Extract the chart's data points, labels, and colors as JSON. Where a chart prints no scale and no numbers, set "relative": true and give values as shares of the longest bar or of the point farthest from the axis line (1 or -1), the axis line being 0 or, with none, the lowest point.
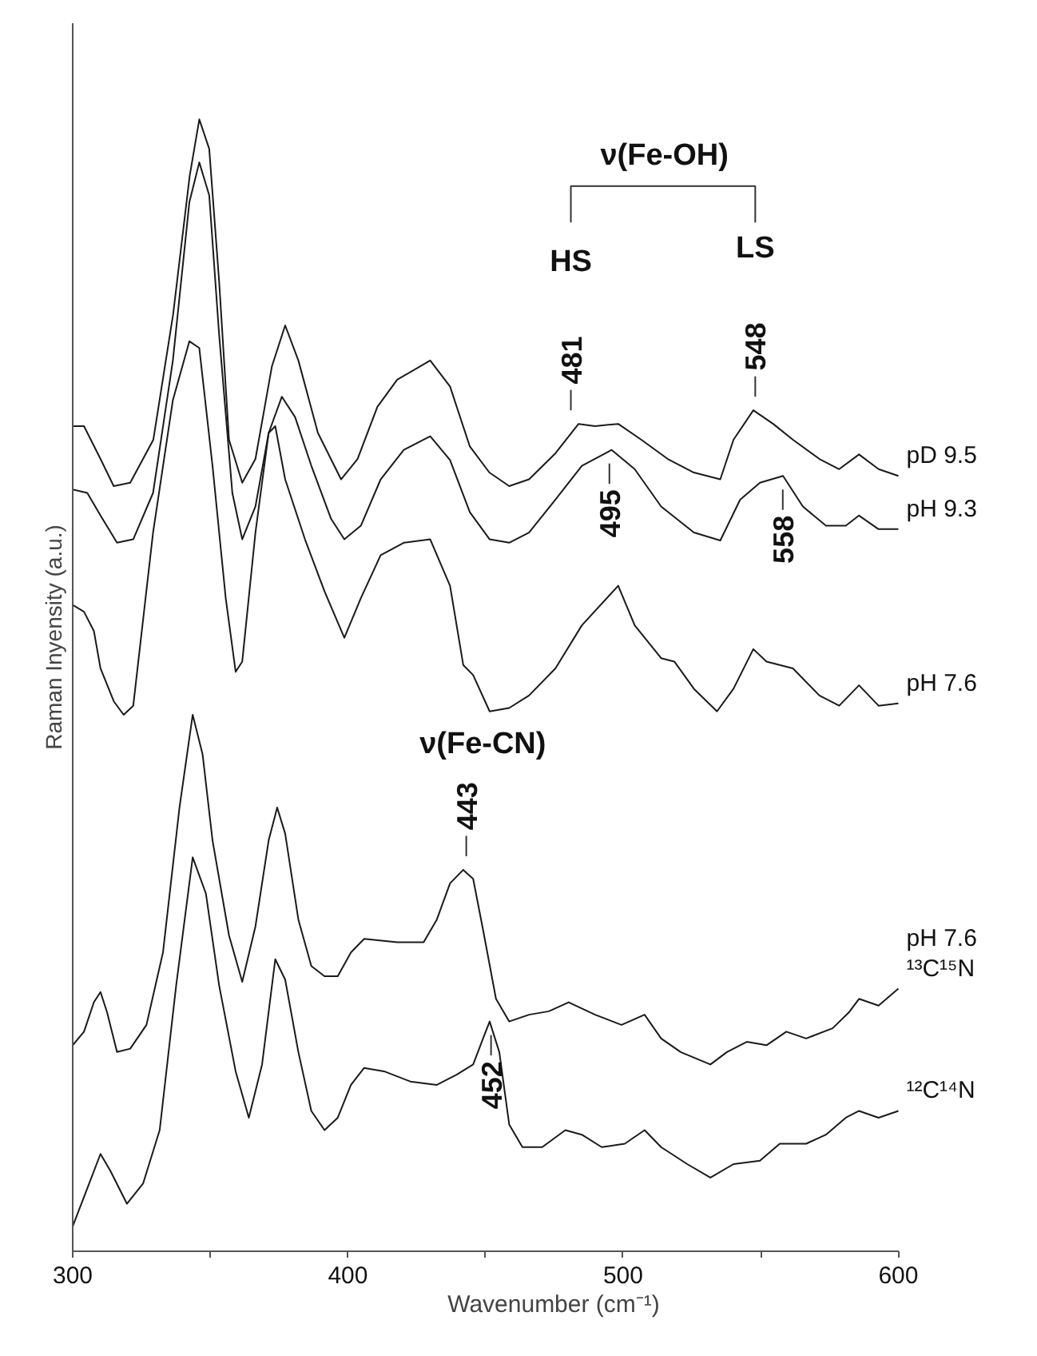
{
  "chart_data": {
    "type": "line",
    "relative": true,
    "xlabel": "Wavenumber (cm⁻¹)",
    "ylabel": "Raman Inyensity (a.u.)",
    "xlim": [
      300,
      600
    ],
    "xticks": [
      300,
      {
        "value": 350,
        "label": null
      },
      400,
      {
        "value": 450,
        "label": null
      },
      500,
      {
        "value": 550,
        "label": null
      },
      600
    ],
    "tick_labels": "x",
    "grid": false,
    "marker": "none",
    "line_style": "solid",
    "series": [
      {
        "name": "pD 9.5",
        "color": "#1a1a1a",
        "x": [
          300,
          304.1,
          310.1,
          314.9,
          320.9,
          329.3,
          336.5,
          342.5,
          346.0,
          349.6,
          353.2,
          356.8,
          361.6,
          366.4,
          372.4,
          377.2,
          382.0,
          389.1,
          397.5,
          403.5,
          410.7,
          417.9,
          429.9,
          437.1,
          444.3,
          451.4,
          458.6,
          465.8,
          475.4,
          483.8,
          489.8,
          498.2,
          506.6,
          516.2,
          525.7,
          535.3,
          540.1,
          547.3,
          554.5,
          561.7,
          571.3,
          578.5,
          585.7,
          592.8,
          600
        ],
        "values": [
          0.729,
          0.729,
          0.7,
          0.676,
          0.679,
          0.717,
          0.828,
          0.95,
          1.0,
          0.974,
          0.857,
          0.717,
          0.679,
          0.7,
          0.782,
          0.818,
          0.787,
          0.723,
          0.682,
          0.7,
          0.746,
          0.77,
          0.787,
          0.764,
          0.711,
          0.688,
          0.676,
          0.682,
          0.705,
          0.731,
          0.729,
          0.731,
          0.717,
          0.7,
          0.688,
          0.682,
          0.717,
          0.743,
          0.731,
          0.717,
          0.7,
          0.691,
          0.704,
          0.691,
          0.685
        ]
      },
      {
        "name": "pH 9.3",
        "color": "#1a1a1a",
        "x": [
          300,
          305.3,
          310.1,
          316.1,
          322.0,
          329.2,
          336.4,
          342.4,
          346.0,
          349.6,
          353.2,
          358.0,
          361.6,
          366.4,
          371.2,
          376.0,
          380.8,
          386.7,
          393.9,
          398.7,
          404.7,
          411.9,
          420.3,
          429.9,
          437.1,
          444.3,
          451.5,
          458.6,
          465.8,
          475.4,
          485.0,
          495.8,
          504.2,
          513.8,
          525.7,
          535.3,
          542.5,
          549.7,
          558.1,
          565.3,
          573.7,
          580.9,
          585.7,
          592.8,
          600
        ],
        "values": [
          0.673,
          0.67,
          0.65,
          0.626,
          0.629,
          0.67,
          0.787,
          0.927,
          0.962,
          0.933,
          0.81,
          0.67,
          0.629,
          0.658,
          0.723,
          0.755,
          0.737,
          0.694,
          0.647,
          0.629,
          0.641,
          0.682,
          0.708,
          0.72,
          0.699,
          0.653,
          0.629,
          0.626,
          0.635,
          0.664,
          0.694,
          0.708,
          0.691,
          0.658,
          0.635,
          0.628,
          0.664,
          0.679,
          0.685,
          0.658,
          0.641,
          0.641,
          0.65,
          0.638,
          0.638
        ]
      },
      {
        "name": "pH 7.6",
        "color": "#1a1a1a",
        "x": [
          300,
          304.1,
          307.7,
          310.1,
          314.9,
          318.5,
          322.0,
          329.2,
          336.4,
          342.4,
          346.0,
          350.8,
          355.6,
          359.2,
          361.6,
          366.4,
          371.2,
          373.6,
          377.2,
          384.4,
          391.5,
          398.7,
          404.7,
          411.9,
          420.3,
          429.9,
          437.1,
          441.9,
          445.5,
          451.5,
          458.6,
          465.8,
          475.4,
          485.0,
          498.2,
          504.2,
          513.8,
          518.6,
          525.7,
          534.1,
          540.1,
          547.3,
          552.1,
          561.7,
          571.3,
          578.5,
          585.7,
          592.8,
          600
        ],
        "values": [
          0.571,
          0.565,
          0.548,
          0.515,
          0.486,
          0.474,
          0.482,
          0.635,
          0.752,
          0.804,
          0.798,
          0.694,
          0.577,
          0.512,
          0.521,
          0.635,
          0.723,
          0.729,
          0.682,
          0.629,
          0.583,
          0.542,
          0.577,
          0.615,
          0.626,
          0.629,
          0.588,
          0.518,
          0.509,
          0.477,
          0.48,
          0.491,
          0.515,
          0.553,
          0.588,
          0.553,
          0.524,
          0.521,
          0.497,
          0.477,
          0.497,
          0.532,
          0.521,
          0.515,
          0.491,
          0.482,
          0.5,
          0.482,
          0.484
        ]
      },
      {
        "name": "pH 7.6\n¹³C¹⁵N",
        "color": "#1a1a1a",
        "x": [
          300,
          304.1,
          307.7,
          310.1,
          312.5,
          316.1,
          320.9,
          326.8,
          332.8,
          338.8,
          343.6,
          347.2,
          350.8,
          356.8,
          361.6,
          366.4,
          371.2,
          374.3,
          377.2,
          382.0,
          386.7,
          391.5,
          396.3,
          401.1,
          405.9,
          417.9,
          427.5,
          432.3,
          437.1,
          441.9,
          445.5,
          449.1,
          453.8,
          458.6,
          465.8,
          473.0,
          480.2,
          489.8,
          499.4,
          507.8,
          513.8,
          520.9,
          531.7,
          537.7,
          544.9,
          552.1,
          559.3,
          566.5,
          576.1,
          582.0,
          585.7,
          592.8,
          600
        ],
        "values": [
          0.182,
          0.194,
          0.22,
          0.229,
          0.211,
          0.176,
          0.179,
          0.2,
          0.264,
          0.392,
          0.474,
          0.439,
          0.363,
          0.279,
          0.238,
          0.287,
          0.363,
          0.392,
          0.369,
          0.293,
          0.252,
          0.243,
          0.243,
          0.264,
          0.276,
          0.273,
          0.273,
          0.293,
          0.325,
          0.337,
          0.329,
          0.284,
          0.223,
          0.203,
          0.209,
          0.212,
          0.22,
          0.209,
          0.2,
          0.209,
          0.188,
          0.176,
          0.165,
          0.176,
          0.185,
          0.182,
          0.194,
          0.188,
          0.197,
          0.211,
          0.223,
          0.217,
          0.232
        ]
      },
      {
        "name": "¹²C¹⁴N",
        "color": "#1a1a1a",
        "x": [
          300,
          304.1,
          310.1,
          313.7,
          319.7,
          325.6,
          331.6,
          337.6,
          343.6,
          348.4,
          353.2,
          359.2,
          364.0,
          368.8,
          373.6,
          377.2,
          382.0,
          386.7,
          391.5,
          396.3,
          401.1,
          405.9,
          413.1,
          422.7,
          432.3,
          439.5,
          445.5,
          449.1,
          451.5,
          455.0,
          458.6,
          463.4,
          470.6,
          479.0,
          485.0,
          492.2,
          500.6,
          507.8,
          513.8,
          523.3,
          531.7,
          540.1,
          549.7,
          556.9,
          566.5,
          573.7,
          580.9,
          585.7,
          592.8,
          600
        ],
        "values": [
          0.022,
          0.048,
          0.086,
          0.071,
          0.042,
          0.06,
          0.107,
          0.235,
          0.348,
          0.316,
          0.235,
          0.159,
          0.118,
          0.165,
          0.258,
          0.24,
          0.176,
          0.124,
          0.107,
          0.118,
          0.147,
          0.162,
          0.159,
          0.15,
          0.147,
          0.156,
          0.165,
          0.188,
          0.203,
          0.176,
          0.112,
          0.092,
          0.092,
          0.107,
          0.103,
          0.092,
          0.095,
          0.107,
          0.092,
          0.077,
          0.065,
          0.077,
          0.08,
          0.095,
          0.095,
          0.103,
          0.118,
          0.124,
          0.118,
          0.124
        ]
      }
    ],
    "annotations": [
      "ν(Fe-OH)",
      "HS",
      "LS",
      {
        "text": "481",
        "x": 481,
        "y": 0.731
      },
      {
        "text": "548",
        "x": 548,
        "y": 0.743
      },
      {
        "text": "495",
        "x": 495,
        "y": 0.708
      },
      {
        "text": "558",
        "x": 558,
        "y": 0.685
      },
      "ν(Fe-CN)",
      {
        "text": "443",
        "x": 443,
        "y": 0.337
      },
      {
        "text": "452",
        "x": 452,
        "y": 0.203
      }
    ]
  }
}
